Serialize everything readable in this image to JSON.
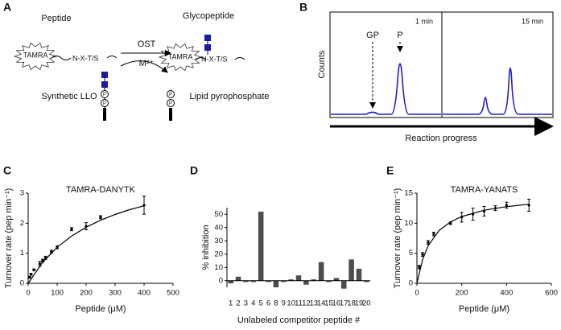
{
  "panel_labels": [
    "A",
    "B",
    "C",
    "D",
    "E"
  ],
  "panel_a": {
    "peptide": "Peptide",
    "glycopeptide": "Glycopeptide",
    "dye": "TAMRA",
    "sequon": "N-X-T/S",
    "enzyme": "OST",
    "cofactor": "M²⁺",
    "donor": "Synthetic LLO",
    "product": "Lipid pyrophosphate",
    "phosphate": "P"
  },
  "panel_b": {
    "gp": "GP",
    "p": "P",
    "time1": "1 min",
    "time2": "15 min",
    "ylabel": "Counts",
    "xlabel": "Reaction progress"
  },
  "chart_data": [
    {
      "type": "scatter",
      "title": "TAMRA-DANYTK",
      "xlabel": "Peptide (μM)",
      "ylabel": "Turnover rate (pep min⁻¹)",
      "x": [
        5,
        10,
        20,
        40,
        50,
        60,
        80,
        100,
        150,
        200,
        250,
        400
      ],
      "values": [
        0.2,
        0.3,
        0.45,
        0.65,
        0.75,
        0.85,
        1.05,
        1.2,
        1.8,
        1.9,
        2.2,
        2.6
      ],
      "errors": [
        0.03,
        0.03,
        0.03,
        0.08,
        0.05,
        0.05,
        0.05,
        0.05,
        0.05,
        0.12,
        0.05,
        0.3
      ],
      "fit": {
        "x": [
          0,
          50,
          100,
          150,
          200,
          250,
          300,
          350,
          400
        ],
        "values": [
          0,
          0.7,
          1.2,
          1.575,
          1.867,
          2.1,
          2.29,
          2.45,
          2.58
        ]
      },
      "color": "#000000",
      "xlim": [
        0,
        500
      ],
      "xticks": [
        0,
        100,
        200,
        300,
        400,
        500
      ],
      "ylim": [
        0,
        3
      ],
      "yticks": [
        0,
        1,
        2,
        3
      ]
    },
    {
      "type": "bar",
      "xlabel": "Unlabeled competitor peptide #",
      "ylabel": "% inhibition",
      "categories": [
        "1",
        "2",
        "3",
        "4",
        "5",
        "6",
        "8",
        "9",
        "10",
        "11",
        "12",
        "13",
        "14",
        "15",
        "16",
        "17",
        "18",
        "19",
        "20"
      ],
      "values": [
        -2,
        3,
        -1,
        -1,
        52,
        -1,
        -5,
        -1,
        1,
        4,
        -3,
        1,
        14,
        -1,
        2,
        -6,
        16,
        9,
        -1
      ],
      "color": "#4d4d4d",
      "ylim": [
        -5,
        55
      ],
      "yticks": [
        0,
        10,
        20,
        30,
        40,
        50
      ]
    },
    {
      "type": "scatter",
      "title": "TAMRA-YANATS",
      "xlabel": "Peptide (μM)",
      "ylabel": "Turnover rate (pep min⁻¹)",
      "x": [
        10,
        25,
        50,
        75,
        150,
        200,
        250,
        300,
        350,
        400,
        500
      ],
      "values": [
        2.7,
        4.8,
        6.8,
        8.2,
        10,
        11,
        11.5,
        12,
        12.5,
        13,
        13
      ],
      "errors": [
        0.3,
        0.3,
        0.3,
        0.3,
        0.2,
        0.8,
        1,
        0.8,
        0.4,
        0.5,
        1
      ],
      "fit": {
        "x": [
          0,
          25,
          50,
          100,
          150,
          200,
          300,
          400,
          500
        ],
        "values": [
          0,
          3.95,
          6.25,
          8.82,
          10.23,
          11.11,
          12.16,
          12.77,
          13.16
        ]
      },
      "color": "#000000",
      "xlim": [
        0,
        600
      ],
      "xticks": [
        0,
        200,
        400,
        600
      ],
      "ylim": [
        0,
        15
      ],
      "yticks": [
        0,
        5,
        10,
        15
      ]
    }
  ]
}
